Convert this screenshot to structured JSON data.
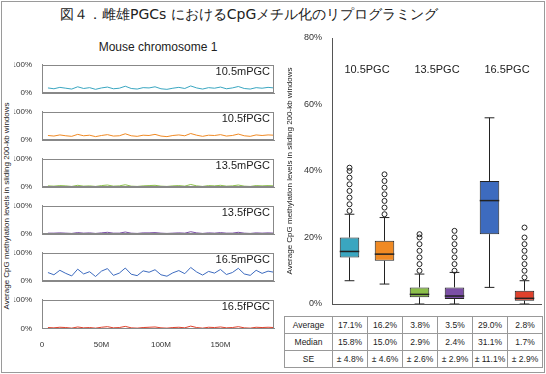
{
  "title": "図４．雌雄PGCs におけるCpGメチル化のリプログラミング",
  "left_panel": {
    "title": "Mouse chromosome 1",
    "y_label": "Average CpG methylation levels in sliding 200-kb windows"
  },
  "chart_data": [
    {
      "type": "line",
      "grid": false,
      "tick_labels": "y",
      "x": [
        5000000,
        10000000,
        15000000,
        20000000,
        25000000,
        30000000,
        35000000,
        40000000,
        45000000,
        50000000,
        55000000,
        60000000,
        65000000,
        70000000,
        75000000,
        80000000,
        85000000,
        90000000,
        95000000,
        100000000,
        105000000,
        110000000,
        115000000,
        120000000,
        125000000,
        130000000,
        135000000,
        140000000,
        145000000,
        150000000,
        155000000,
        160000000,
        165000000,
        170000000,
        175000000,
        180000000,
        185000000,
        190000000,
        195000000
      ],
      "xlim": [
        0,
        195000000
      ],
      "xticks": [
        0,
        {
          "value": 50000000,
          "label": "50M"
        },
        {
          "value": 100000000,
          "label": "100M"
        },
        {
          "value": 150000000,
          "label": "150M"
        }
      ],
      "ylim": [
        0,
        100
      ],
      "yticks": [
        {
          "value": 0,
          "label": "0%"
        },
        {
          "value": 100,
          "label": "100%"
        }
      ],
      "series": [
        {
          "name": "10.5mPGC",
          "color": "#3aa6c0",
          "values": [
            18,
            15,
            20,
            17,
            14,
            22,
            16,
            19,
            13,
            18,
            21,
            15,
            17,
            24,
            16,
            14,
            19,
            18,
            22,
            15,
            13,
            17,
            20,
            16,
            25,
            18,
            14,
            19,
            17,
            21,
            15,
            18,
            23,
            16,
            14,
            19,
            17,
            20,
            18
          ]
        }
      ]
    },
    {
      "type": "line",
      "grid": false,
      "tick_labels": "y",
      "x": [
        5000000,
        10000000,
        15000000,
        20000000,
        25000000,
        30000000,
        35000000,
        40000000,
        45000000,
        50000000,
        55000000,
        60000000,
        65000000,
        70000000,
        75000000,
        80000000,
        85000000,
        90000000,
        95000000,
        100000000,
        105000000,
        110000000,
        115000000,
        120000000,
        125000000,
        130000000,
        135000000,
        140000000,
        145000000,
        150000000,
        155000000,
        160000000,
        165000000,
        170000000,
        175000000,
        180000000,
        185000000,
        190000000,
        195000000
      ],
      "xlim": [
        0,
        195000000
      ],
      "xticks": [
        0,
        {
          "value": 50000000,
          "label": "50M"
        },
        {
          "value": 100000000,
          "label": "100M"
        },
        {
          "value": 150000000,
          "label": "150M"
        }
      ],
      "ylim": [
        0,
        100
      ],
      "yticks": [
        {
          "value": 0,
          "label": "0%"
        },
        {
          "value": 100,
          "label": "100%"
        }
      ],
      "series": [
        {
          "name": "10.5fPGC",
          "color": "#f08a24",
          "values": [
            16,
            14,
            18,
            15,
            13,
            20,
            15,
            17,
            12,
            16,
            19,
            14,
            15,
            22,
            15,
            13,
            17,
            16,
            20,
            14,
            12,
            16,
            18,
            15,
            23,
            17,
            13,
            17,
            16,
            19,
            14,
            16,
            21,
            15,
            13,
            18,
            16,
            18,
            17
          ]
        }
      ]
    },
    {
      "type": "line",
      "grid": false,
      "tick_labels": "y",
      "x": [
        5000000,
        10000000,
        15000000,
        20000000,
        25000000,
        30000000,
        35000000,
        40000000,
        45000000,
        50000000,
        55000000,
        60000000,
        65000000,
        70000000,
        75000000,
        80000000,
        85000000,
        90000000,
        95000000,
        100000000,
        105000000,
        110000000,
        115000000,
        120000000,
        125000000,
        130000000,
        135000000,
        140000000,
        145000000,
        150000000,
        155000000,
        160000000,
        165000000,
        170000000,
        175000000,
        180000000,
        185000000,
        190000000,
        195000000
      ],
      "xlim": [
        0,
        195000000
      ],
      "xticks": [
        0,
        {
          "value": 50000000,
          "label": "50M"
        },
        {
          "value": 100000000,
          "label": "100M"
        },
        {
          "value": 150000000,
          "label": "150M"
        }
      ],
      "ylim": [
        0,
        100
      ],
      "yticks": [
        {
          "value": 0,
          "label": "0%"
        },
        {
          "value": 100,
          "label": "100%"
        }
      ],
      "series": [
        {
          "name": "13.5mPGC",
          "color": "#8cc04a",
          "values": [
            4,
            3,
            5,
            4,
            2,
            6,
            3,
            4,
            2,
            5,
            7,
            3,
            4,
            8,
            3,
            2,
            4,
            5,
            6,
            3,
            2,
            4,
            5,
            3,
            9,
            4,
            2,
            5,
            4,
            6,
            3,
            4,
            7,
            3,
            2,
            5,
            4,
            5,
            4
          ]
        }
      ]
    },
    {
      "type": "line",
      "grid": false,
      "tick_labels": "y",
      "x": [
        5000000,
        10000000,
        15000000,
        20000000,
        25000000,
        30000000,
        35000000,
        40000000,
        45000000,
        50000000,
        55000000,
        60000000,
        65000000,
        70000000,
        75000000,
        80000000,
        85000000,
        90000000,
        95000000,
        100000000,
        105000000,
        110000000,
        115000000,
        120000000,
        125000000,
        130000000,
        135000000,
        140000000,
        145000000,
        150000000,
        155000000,
        160000000,
        165000000,
        170000000,
        175000000,
        180000000,
        185000000,
        190000000,
        195000000
      ],
      "xlim": [
        0,
        195000000
      ],
      "xticks": [
        0,
        {
          "value": 50000000,
          "label": "50M"
        },
        {
          "value": 100000000,
          "label": "100M"
        },
        {
          "value": 150000000,
          "label": "150M"
        }
      ],
      "ylim": [
        0,
        100
      ],
      "yticks": [
        {
          "value": 0,
          "label": "0%"
        },
        {
          "value": 100,
          "label": "100%"
        }
      ],
      "series": [
        {
          "name": "13.5fPGC",
          "color": "#7b4fa6",
          "values": [
            3,
            3,
            4,
            3,
            2,
            5,
            3,
            4,
            2,
            4,
            6,
            3,
            3,
            7,
            3,
            2,
            4,
            4,
            5,
            3,
            2,
            3,
            4,
            3,
            8,
            4,
            2,
            4,
            3,
            5,
            3,
            3,
            6,
            3,
            2,
            4,
            3,
            4,
            3
          ]
        }
      ]
    },
    {
      "type": "line",
      "grid": false,
      "tick_labels": "y",
      "x": [
        5000000,
        10000000,
        15000000,
        20000000,
        25000000,
        30000000,
        35000000,
        40000000,
        45000000,
        50000000,
        55000000,
        60000000,
        65000000,
        70000000,
        75000000,
        80000000,
        85000000,
        90000000,
        95000000,
        100000000,
        105000000,
        110000000,
        115000000,
        120000000,
        125000000,
        130000000,
        135000000,
        140000000,
        145000000,
        150000000,
        155000000,
        160000000,
        165000000,
        170000000,
        175000000,
        180000000,
        185000000,
        190000000,
        195000000
      ],
      "xlim": [
        0,
        195000000
      ],
      "xticks": [
        0,
        {
          "value": 50000000,
          "label": "50M"
        },
        {
          "value": 100000000,
          "label": "100M"
        },
        {
          "value": 150000000,
          "label": "150M"
        }
      ],
      "ylim": [
        0,
        100
      ],
      "yticks": [
        {
          "value": 0,
          "label": "0%"
        },
        {
          "value": 100,
          "label": "100%"
        }
      ],
      "series": [
        {
          "name": "16.5mPGC",
          "color": "#3d6bbf",
          "values": [
            30,
            22,
            38,
            27,
            18,
            42,
            25,
            33,
            16,
            35,
            44,
            20,
            28,
            46,
            24,
            19,
            36,
            31,
            40,
            22,
            17,
            29,
            37,
            26,
            48,
            32,
            21,
            34,
            28,
            41,
            23,
            30,
            45,
            25,
            20,
            38,
            27,
            35,
            31
          ]
        }
      ]
    },
    {
      "type": "line",
      "grid": false,
      "x": [
        5000000,
        10000000,
        15000000,
        20000000,
        25000000,
        30000000,
        35000000,
        40000000,
        45000000,
        50000000,
        55000000,
        60000000,
        65000000,
        70000000,
        75000000,
        80000000,
        85000000,
        90000000,
        95000000,
        100000000,
        105000000,
        110000000,
        115000000,
        120000000,
        125000000,
        130000000,
        135000000,
        140000000,
        145000000,
        150000000,
        155000000,
        160000000,
        165000000,
        170000000,
        175000000,
        180000000,
        185000000,
        190000000,
        195000000
      ],
      "xlim": [
        0,
        195000000
      ],
      "xticks": [
        0,
        {
          "value": 50000000,
          "label": "50M"
        },
        {
          "value": 100000000,
          "label": "100M"
        },
        {
          "value": 150000000,
          "label": "150M"
        }
      ],
      "ylim": [
        0,
        100
      ],
      "yticks": [
        {
          "value": 0,
          "label": "0%"
        },
        {
          "value": 100,
          "label": "100%"
        }
      ],
      "series": [
        {
          "name": "16.5fPGC",
          "color": "#e0412c",
          "values": [
            3,
            2,
            4,
            3,
            1,
            5,
            2,
            3,
            1,
            4,
            6,
            2,
            3,
            7,
            2,
            1,
            3,
            4,
            5,
            2,
            1,
            3,
            4,
            2,
            8,
            3,
            1,
            4,
            3,
            5,
            2,
            3,
            6,
            2,
            1,
            4,
            3,
            4,
            3
          ]
        }
      ]
    },
    {
      "type": "box",
      "grid": false,
      "tick_labels": "y",
      "y_label": "Average CpG methylation levels in sliding 200-kb windows",
      "categories": [
        null,
        null,
        null,
        null,
        null,
        null
      ],
      "groups": [
        "10.5PGC",
        "13.5PGC",
        "16.5PGC"
      ],
      "colors": [
        "#3aa6c0",
        "#f08a24",
        "#8cc04a",
        "#7b4fa6",
        "#3d6bbf",
        "#e0412c"
      ],
      "whisker_low": [
        7,
        6,
        0,
        0,
        5,
        0
      ],
      "q1": [
        14,
        13,
        2,
        1.5,
        21,
        1
      ],
      "median": [
        15.8,
        15.0,
        2.9,
        2.4,
        31.1,
        1.7
      ],
      "q3": [
        20,
        19,
        5,
        5,
        37,
        4
      ],
      "whisker_high": [
        27,
        26,
        9,
        9.5,
        56,
        7
      ],
      "outliers": [
        [
          28,
          30,
          32,
          34,
          36,
          38,
          40,
          41
        ],
        [
          27,
          29,
          31,
          33,
          35,
          37,
          39
        ],
        [
          10,
          12,
          14,
          16,
          18,
          20,
          21
        ],
        [
          10,
          12,
          14,
          16,
          18,
          20,
          22
        ],
        [],
        [
          8,
          10,
          12,
          14,
          16,
          18,
          20,
          23
        ]
      ],
      "ylim": [
        0,
        80
      ],
      "yticks": [
        {
          "value": 0,
          "label": "0%"
        },
        {
          "value": 20,
          "label": "20%"
        },
        {
          "value": 40,
          "label": "40%"
        },
        {
          "value": 60,
          "label": "60%"
        },
        {
          "value": 80,
          "label": "80%"
        }
      ]
    }
  ],
  "table": {
    "rows": [
      [
        "Average",
        "17.1%",
        "16.2%",
        "3.8%",
        "3.5%",
        "29.0%",
        "2.8%"
      ],
      [
        "Median",
        "15.8%",
        "15.0%",
        "2.9%",
        "2.4%",
        "31.1%",
        "1.7%"
      ],
      [
        "SE",
        "± 4.8%",
        "± 4.6%",
        "± 2.6%",
        "± 2.9%",
        "± 11.1%",
        "± 2.9%"
      ]
    ]
  }
}
